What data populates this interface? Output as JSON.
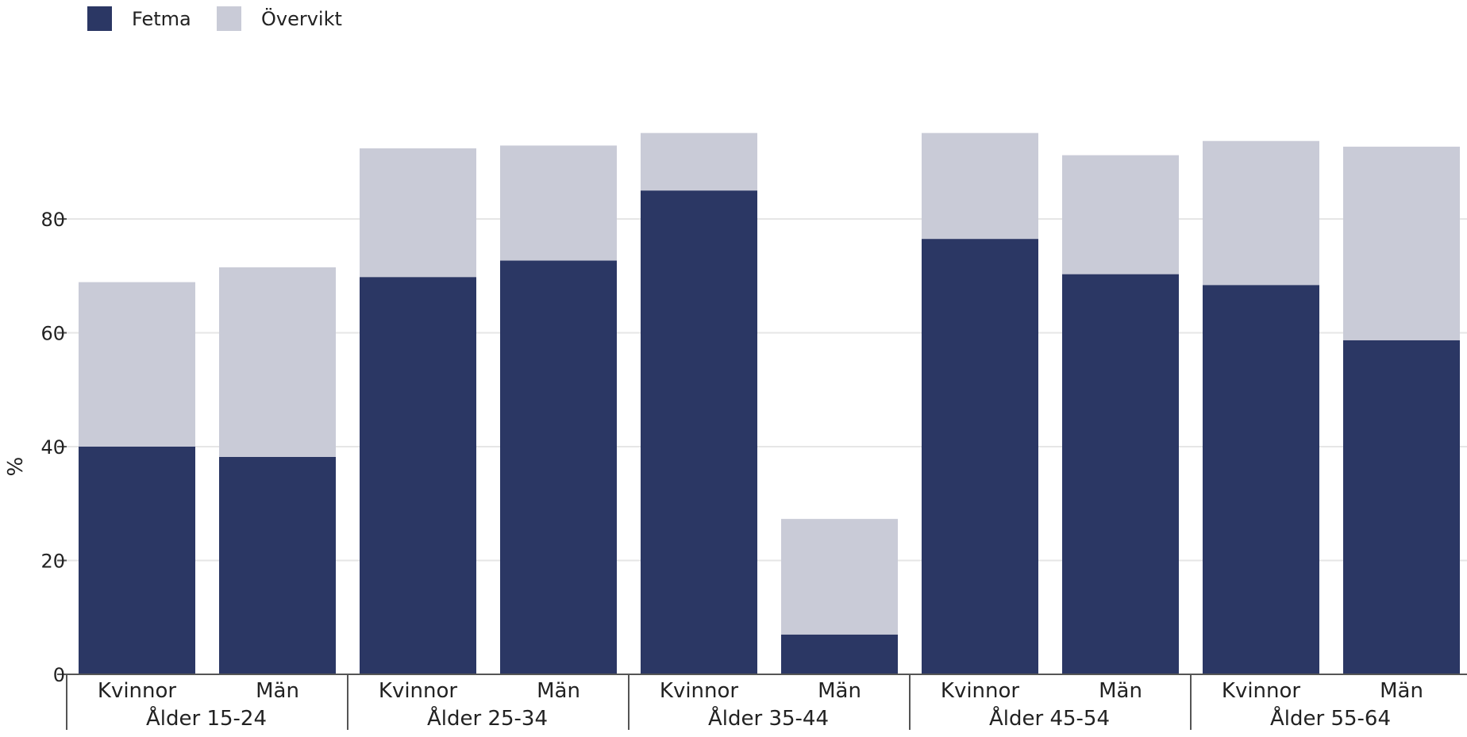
{
  "chart_data": {
    "type": "bar",
    "stacked": true,
    "ylabel": "%",
    "xlabel": "",
    "ylim": [
      0,
      100
    ],
    "yticks": [
      0,
      20,
      40,
      60,
      80
    ],
    "grid": true,
    "legend_position": "top-left",
    "groups": [
      "Ålder 15-24",
      "Ålder 25-34",
      "Ålder 35-44",
      "Ålder 45-54",
      "Ålder 55-64"
    ],
    "categories": [
      "Kvinnor",
      "Män"
    ],
    "series": [
      {
        "name": "Fetma",
        "color": "#2b3764",
        "values": [
          [
            40.0,
            38.2
          ],
          [
            69.8,
            72.7
          ],
          [
            85.0,
            7.0
          ],
          [
            76.5,
            70.3
          ],
          [
            68.4,
            58.7
          ]
        ]
      },
      {
        "name": "Övervikt",
        "color": "#c9cbd7",
        "values": [
          [
            28.9,
            33.3
          ],
          [
            22.6,
            20.2
          ],
          [
            10.1,
            20.3
          ],
          [
            18.6,
            20.9
          ],
          [
            25.3,
            34.0
          ]
        ]
      }
    ]
  }
}
